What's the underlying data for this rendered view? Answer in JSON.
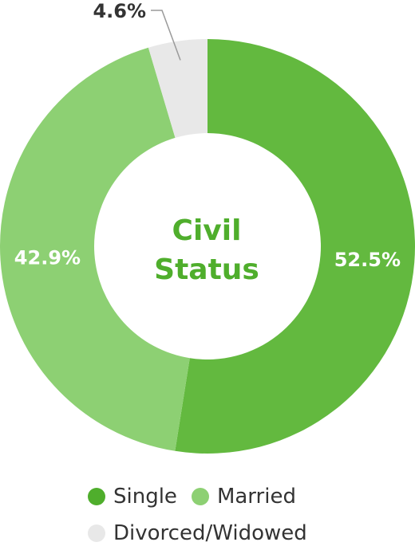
{
  "chart_data": {
    "type": "pie",
    "title_lines": [
      "Civil",
      "Status"
    ],
    "categories": [
      "Single",
      "Married",
      "Divorced/Widowed"
    ],
    "values": [
      52.5,
      42.9,
      4.6
    ],
    "labels": [
      "52.5%",
      "42.9%",
      "4.6%"
    ],
    "colors": [
      "#63b93f",
      "#8dd073",
      "#e8e8e8"
    ],
    "title_color": "#4fae2c",
    "label_color": "#ffffff",
    "outside_label_color": "#333333",
    "legend": {
      "position": "bottom",
      "items": [
        "Single",
        "Married",
        "Divorced/Widowed"
      ],
      "colors": [
        "#4fae2c",
        "#8dd073",
        "#e8e8e8"
      ]
    }
  }
}
